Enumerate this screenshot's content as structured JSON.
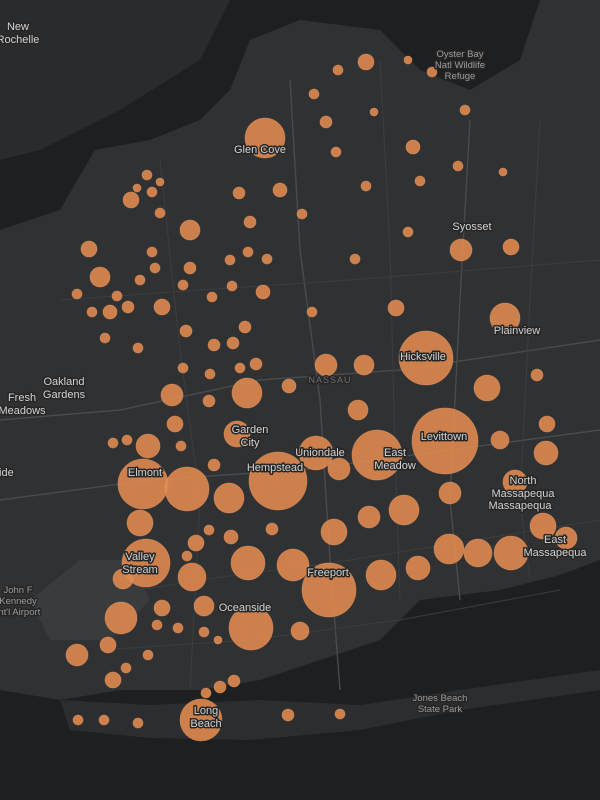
{
  "labels": [
    {
      "lines": [
        "New",
        "Rochelle"
      ]
    },
    {
      "lines": [
        "Oyster Bay",
        "Natl Wildlife",
        "Refuge"
      ]
    },
    {
      "lines": [
        "Glen Cove"
      ]
    },
    {
      "lines": [
        "Syosset"
      ]
    },
    {
      "lines": [
        "Plainview"
      ]
    },
    {
      "lines": [
        "Hicksville"
      ]
    },
    {
      "lines": [
        "Oakland",
        "Gardens"
      ]
    },
    {
      "lines": [
        "Fresh",
        "Meadows"
      ]
    },
    {
      "lines": [
        "NASSAU"
      ]
    },
    {
      "lines": [
        "Garden",
        "City"
      ]
    },
    {
      "lines": [
        "Uniondale"
      ]
    },
    {
      "lines": [
        "East",
        "Meadow"
      ]
    },
    {
      "lines": [
        "Levittown"
      ]
    },
    {
      "lines": [
        "Elmont"
      ]
    },
    {
      "lines": [
        "Hempstead"
      ]
    },
    {
      "lines": [
        "Hillside"
      ]
    },
    {
      "lines": [
        "North",
        "Massapequa"
      ]
    },
    {
      "lines": [
        "Massapequa"
      ]
    },
    {
      "lines": [
        "East",
        "Massapequa"
      ]
    },
    {
      "lines": [
        "Valley",
        "Stream"
      ]
    },
    {
      "lines": [
        "Freeport"
      ]
    },
    {
      "lines": [
        "John F",
        "Kennedy",
        "Int'l Airport"
      ]
    },
    {
      "lines": [
        "Oceanside"
      ]
    },
    {
      "lines": [
        "Jones Beach",
        "State Park"
      ]
    },
    {
      "lines": [
        "Long",
        "Beach"
      ]
    }
  ],
  "marker_sizes": [
    20,
    8,
    5,
    4,
    5,
    5,
    6,
    4,
    5,
    7,
    5,
    5,
    5,
    5,
    4,
    6,
    7,
    5,
    6,
    5,
    11,
    8,
    5,
    5,
    5,
    10,
    5,
    4,
    4,
    8,
    5,
    5,
    8,
    5,
    5,
    5,
    10,
    6,
    5,
    5,
    5,
    7,
    5,
    5,
    5,
    7,
    6,
    5,
    5,
    5,
    8,
    6,
    6,
    6,
    6,
    5,
    8,
    15,
    27,
    6,
    13,
    11,
    10,
    5,
    6,
    5,
    5,
    15,
    7,
    11,
    6,
    10,
    8,
    13,
    5,
    5,
    12,
    5,
    17,
    25,
    33,
    9,
    8,
    12,
    6,
    25,
    22,
    15,
    29,
    11,
    12,
    11,
    15,
    11,
    13,
    13,
    6,
    5,
    7,
    8,
    5,
    24,
    17,
    16,
    14,
    10,
    27,
    15,
    12,
    15,
    14,
    17,
    13,
    11,
    8,
    10,
    16,
    5,
    22,
    9,
    5,
    5,
    4,
    8,
    11,
    5,
    5,
    8,
    6,
    6,
    5,
    21,
    5,
    5,
    5,
    6,
    5
  ]
}
